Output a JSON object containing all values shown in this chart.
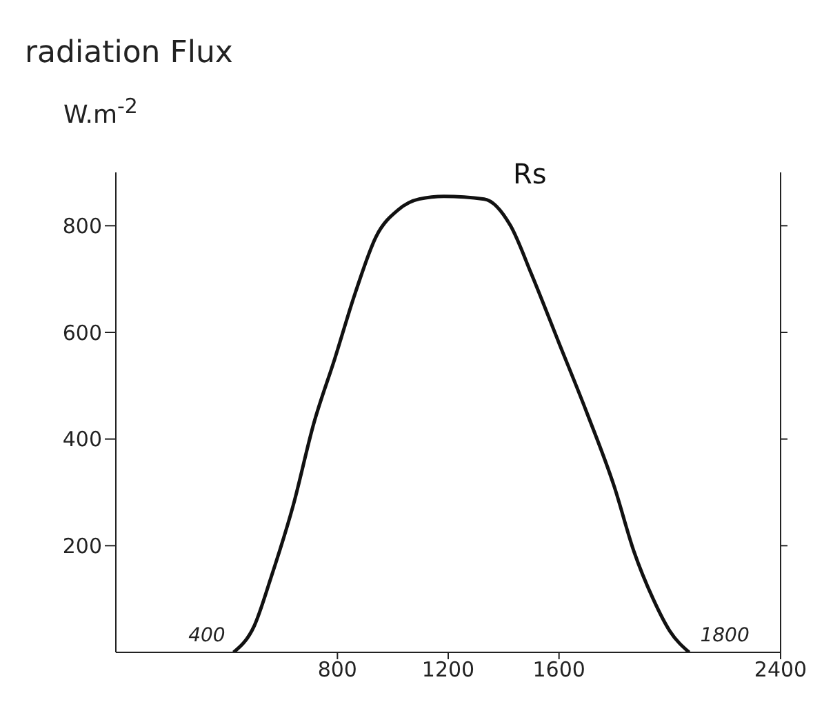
{
  "chart_data": {
    "type": "line",
    "title": "radiation Flux",
    "ylabel": "W.m$^{-2}$",
    "x": [
      425,
      500,
      560,
      640,
      715,
      790,
      865,
      940,
      1020,
      1095,
      1185,
      1330,
      1425,
      1500,
      1600,
      1700,
      1800,
      1870,
      1940,
      2000,
      2070
    ],
    "series": [
      {
        "name": "Rs",
        "color": "#111111",
        "values": [
          0,
          50,
          140,
          275,
          430,
          550,
          675,
          780,
          830,
          850,
          855,
          850,
          800,
          710,
          580,
          450,
          310,
          190,
          100,
          40,
          0
        ]
      }
    ],
    "xlim": [
      0,
      2400
    ],
    "xticks": [
      800,
      1200,
      1600,
      2400
    ],
    "ylim": [
      0,
      900
    ],
    "yticks": [
      200,
      400,
      600,
      800
    ],
    "annotations": [
      {
        "text": "400",
        "x": 425,
        "y": 0
      },
      {
        "text": "1800",
        "x": 2070,
        "y": 0
      }
    ],
    "marker": "none",
    "line_style": "solid"
  }
}
